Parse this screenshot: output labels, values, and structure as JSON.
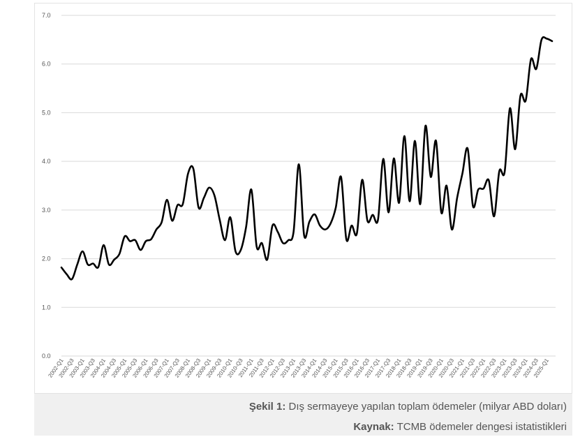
{
  "chart_data": {
    "type": "line",
    "title": "",
    "xlabel": "",
    "ylabel": "",
    "ylim": [
      0,
      7
    ],
    "yticks": [
      "0.0",
      "1.0",
      "2.0",
      "3.0",
      "4.0",
      "5.0",
      "6.0",
      "7.0"
    ],
    "grid": "horizontal",
    "line_color": "#000000",
    "x_tick_labels": [
      "2002-Q1",
      "2002-Q3",
      "2003-Q1",
      "2003-Q3",
      "2004-Q1",
      "2004-Q3",
      "2005-Q1",
      "2005-Q3",
      "2006-Q1",
      "2006-Q3",
      "2007-Q1",
      "2007-Q3",
      "2008-Q1",
      "2008-Q3",
      "2009-Q1",
      "2009-Q3",
      "2010-Q1",
      "2010-Q3",
      "2011-Q1",
      "2011-Q3",
      "2012-Q1",
      "2012-Q3",
      "2013-Q1",
      "2013-Q3",
      "2014-Q1",
      "2014-Q3",
      "2015-Q1",
      "2015-Q3",
      "2016-Q1",
      "2016-Q3",
      "2017-Q1",
      "2017-Q3",
      "2018-Q1",
      "2018-Q3",
      "2019-Q1",
      "2019-Q3",
      "2020-Q1",
      "2020-Q3",
      "2021-Q1",
      "2021-Q3",
      "2022-Q1",
      "2022-Q3",
      "2023-Q1",
      "2023-Q3",
      "2024-Q1",
      "2024-Q3",
      "2025-Q1"
    ],
    "x": [
      "2002-Q1",
      "2002-Q2",
      "2002-Q3",
      "2002-Q4",
      "2003-Q1",
      "2003-Q2",
      "2003-Q3",
      "2003-Q4",
      "2004-Q1",
      "2004-Q2",
      "2004-Q3",
      "2004-Q4",
      "2005-Q1",
      "2005-Q2",
      "2005-Q3",
      "2005-Q4",
      "2006-Q1",
      "2006-Q2",
      "2006-Q3",
      "2006-Q4",
      "2007-Q1",
      "2007-Q2",
      "2007-Q3",
      "2007-Q4",
      "2008-Q1",
      "2008-Q2",
      "2008-Q3",
      "2008-Q4",
      "2009-Q1",
      "2009-Q2",
      "2009-Q3",
      "2009-Q4",
      "2010-Q1",
      "2010-Q2",
      "2010-Q3",
      "2010-Q4",
      "2011-Q1",
      "2011-Q2",
      "2011-Q3",
      "2011-Q4",
      "2012-Q1",
      "2012-Q2",
      "2012-Q3",
      "2012-Q4",
      "2013-Q1",
      "2013-Q2",
      "2013-Q3",
      "2013-Q4",
      "2014-Q1",
      "2014-Q2",
      "2014-Q3",
      "2014-Q4",
      "2015-Q1",
      "2015-Q2",
      "2015-Q3",
      "2015-Q4",
      "2016-Q1",
      "2016-Q2",
      "2016-Q3",
      "2016-Q4",
      "2017-Q1",
      "2017-Q2",
      "2017-Q3",
      "2017-Q4",
      "2018-Q1",
      "2018-Q2",
      "2018-Q3",
      "2018-Q4",
      "2019-Q1",
      "2019-Q2",
      "2019-Q3",
      "2019-Q4",
      "2020-Q1",
      "2020-Q2",
      "2020-Q3",
      "2020-Q4",
      "2021-Q1",
      "2021-Q2",
      "2021-Q3",
      "2021-Q4",
      "2022-Q1",
      "2022-Q2",
      "2022-Q3",
      "2022-Q4",
      "2023-Q1",
      "2023-Q2",
      "2023-Q3",
      "2023-Q4",
      "2024-Q1",
      "2024-Q2",
      "2024-Q3",
      "2024-Q4",
      "2025-Q1",
      "2025-Q2"
    ],
    "values": [
      1.82,
      1.68,
      1.58,
      1.88,
      2.15,
      1.88,
      1.9,
      1.83,
      2.28,
      1.88,
      1.98,
      2.1,
      2.46,
      2.36,
      2.38,
      2.18,
      2.36,
      2.4,
      2.6,
      2.75,
      3.21,
      2.78,
      3.1,
      3.12,
      3.75,
      3.85,
      3.05,
      3.25,
      3.46,
      3.3,
      2.8,
      2.38,
      2.85,
      2.15,
      2.18,
      2.65,
      3.42,
      2.25,
      2.32,
      1.98,
      2.68,
      2.55,
      2.32,
      2.38,
      2.55,
      3.94,
      2.48,
      2.76,
      2.91,
      2.68,
      2.6,
      2.72,
      3.05,
      3.68,
      2.4,
      2.68,
      2.52,
      3.62,
      2.78,
      2.9,
      2.8,
      4.05,
      2.95,
      4.06,
      3.15,
      4.52,
      3.18,
      4.42,
      3.12,
      4.73,
      3.68,
      4.42,
      2.95,
      3.5,
      2.6,
      3.25,
      3.75,
      4.26,
      3.08,
      3.42,
      3.44,
      3.61,
      2.87,
      3.8,
      3.78,
      5.09,
      4.25,
      5.35,
      5.25,
      6.1,
      5.9,
      6.5,
      6.52,
      6.47
    ]
  },
  "caption": {
    "line1_bold": "Şekil 1:",
    "line1_text": " Dış sermayeye yapılan toplam ödemeler (milyar ABD doları)",
    "line2_bold": "Kaynak:",
    "line2_text": " TCMB ödemeler dengesi istatistikleri"
  }
}
